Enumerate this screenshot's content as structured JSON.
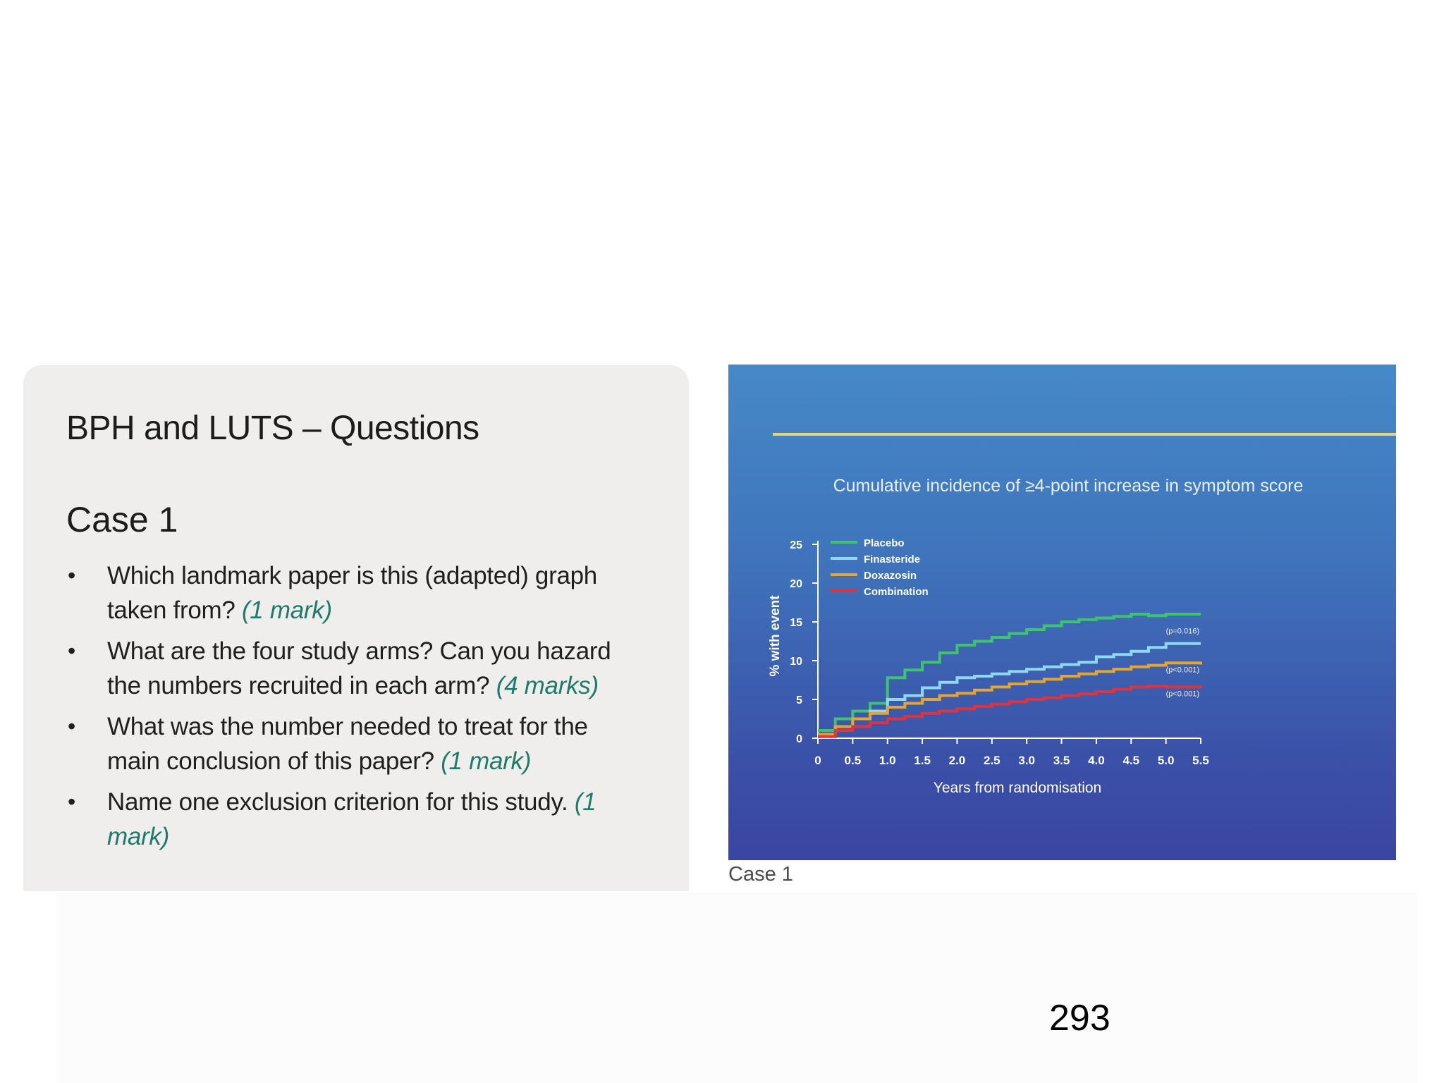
{
  "panel": {
    "title": "BPH and LUTS – Questions",
    "case_heading": "Case 1",
    "bullet": "•",
    "questions": [
      {
        "text": "Which landmark paper is this (adapted) graph taken from? ",
        "marks": "(1 mark)"
      },
      {
        "text": "What are the four study arms? Can you hazard the numbers recruited in each arm? ",
        "marks": "(4 marks)"
      },
      {
        "text": "What was the number needed to treat for the main conclusion of this paper? ",
        "marks": "(1 mark)"
      },
      {
        "text": "Name one exclusion criterion for this study. ",
        "marks": "(1 mark)"
      }
    ]
  },
  "figure": {
    "caption": "Case 1",
    "background": "#3f6fba",
    "rule_color": "#e6d47a"
  },
  "page_number": "293",
  "chart_data": {
    "type": "line",
    "title": "Cumulative incidence of ≥4-point increase in symptom score",
    "xlabel": "Years from randomisation",
    "ylabel": "% with event",
    "xlim": [
      0,
      5.5
    ],
    "ylim": [
      0,
      25
    ],
    "x_ticks": [
      "0",
      "0.5",
      "1.0",
      "1.5",
      "2.0",
      "2.5",
      "3.0",
      "3.5",
      "4.0",
      "4.5",
      "5.0",
      "5.5"
    ],
    "y_ticks": [
      "0",
      "5",
      "10",
      "15",
      "20",
      "25"
    ],
    "legend_position": "top-left",
    "series": [
      {
        "name": "Placebo",
        "color": "#3ec46d",
        "step": true,
        "x": [
          0,
          0.25,
          0.5,
          0.75,
          1.0,
          1.25,
          1.5,
          1.75,
          2.0,
          2.25,
          2.5,
          2.75,
          3.0,
          3.25,
          3.5,
          3.75,
          4.0,
          4.25,
          4.5,
          4.75,
          5.0,
          5.5
        ],
        "y": [
          1,
          2.5,
          3.5,
          4.5,
          7.8,
          8.8,
          9.8,
          11,
          12,
          12.5,
          13,
          13.5,
          14,
          14.5,
          15,
          15.3,
          15.5,
          15.7,
          16,
          15.8,
          16,
          16
        ]
      },
      {
        "name": "Finasteride",
        "color": "#8fd8f0",
        "step": true,
        "x": [
          0,
          0.25,
          0.5,
          0.75,
          1.0,
          1.25,
          1.5,
          1.75,
          2.0,
          2.25,
          2.5,
          2.75,
          3.0,
          3.25,
          3.5,
          3.75,
          4.0,
          4.25,
          4.5,
          4.75,
          5.0,
          5.5
        ],
        "y": [
          0.5,
          1.5,
          2.5,
          3.5,
          5,
          5.5,
          6.5,
          7.2,
          7.8,
          8,
          8.3,
          8.6,
          8.9,
          9.2,
          9.5,
          9.8,
          10.5,
          10.8,
          11.2,
          11.7,
          12.2,
          12.2
        ]
      },
      {
        "name": "Doxazosin",
        "color": "#e5a52e",
        "step": true,
        "x": [
          0,
          0.25,
          0.5,
          0.75,
          1.0,
          1.25,
          1.5,
          1.75,
          2.0,
          2.25,
          2.5,
          2.75,
          3.0,
          3.25,
          3.5,
          3.75,
          4.0,
          4.25,
          4.5,
          4.75,
          5.0,
          5.5
        ],
        "y": [
          0.5,
          1.5,
          2.5,
          3.2,
          4,
          4.5,
          5,
          5.5,
          5.8,
          6.2,
          6.6,
          7,
          7.3,
          7.6,
          8,
          8.3,
          8.6,
          8.9,
          9.2,
          9.4,
          9.7,
          9.5
        ]
      },
      {
        "name": "Combination",
        "color": "#e0333f",
        "step": true,
        "x": [
          0,
          0.25,
          0.5,
          0.75,
          1.0,
          1.25,
          1.5,
          1.75,
          2.0,
          2.25,
          2.5,
          2.75,
          3.0,
          3.25,
          3.5,
          3.75,
          4.0,
          4.25,
          4.5,
          4.75,
          5.0,
          5.5
        ],
        "y": [
          0.2,
          1,
          1.5,
          2,
          2.5,
          2.8,
          3.2,
          3.5,
          3.8,
          4.1,
          4.4,
          4.7,
          5,
          5.2,
          5.5,
          5.7,
          6,
          6.3,
          6.6,
          6.7,
          6.6,
          6.5
        ]
      }
    ],
    "annotations": [
      {
        "text": "(p=0.016)",
        "x": 5.5,
        "y": 13.5
      },
      {
        "text": "(p<0.001)",
        "x": 5.5,
        "y": 8.5
      },
      {
        "text": "(p<0.001)",
        "x": 5.5,
        "y": 5.4
      }
    ]
  }
}
